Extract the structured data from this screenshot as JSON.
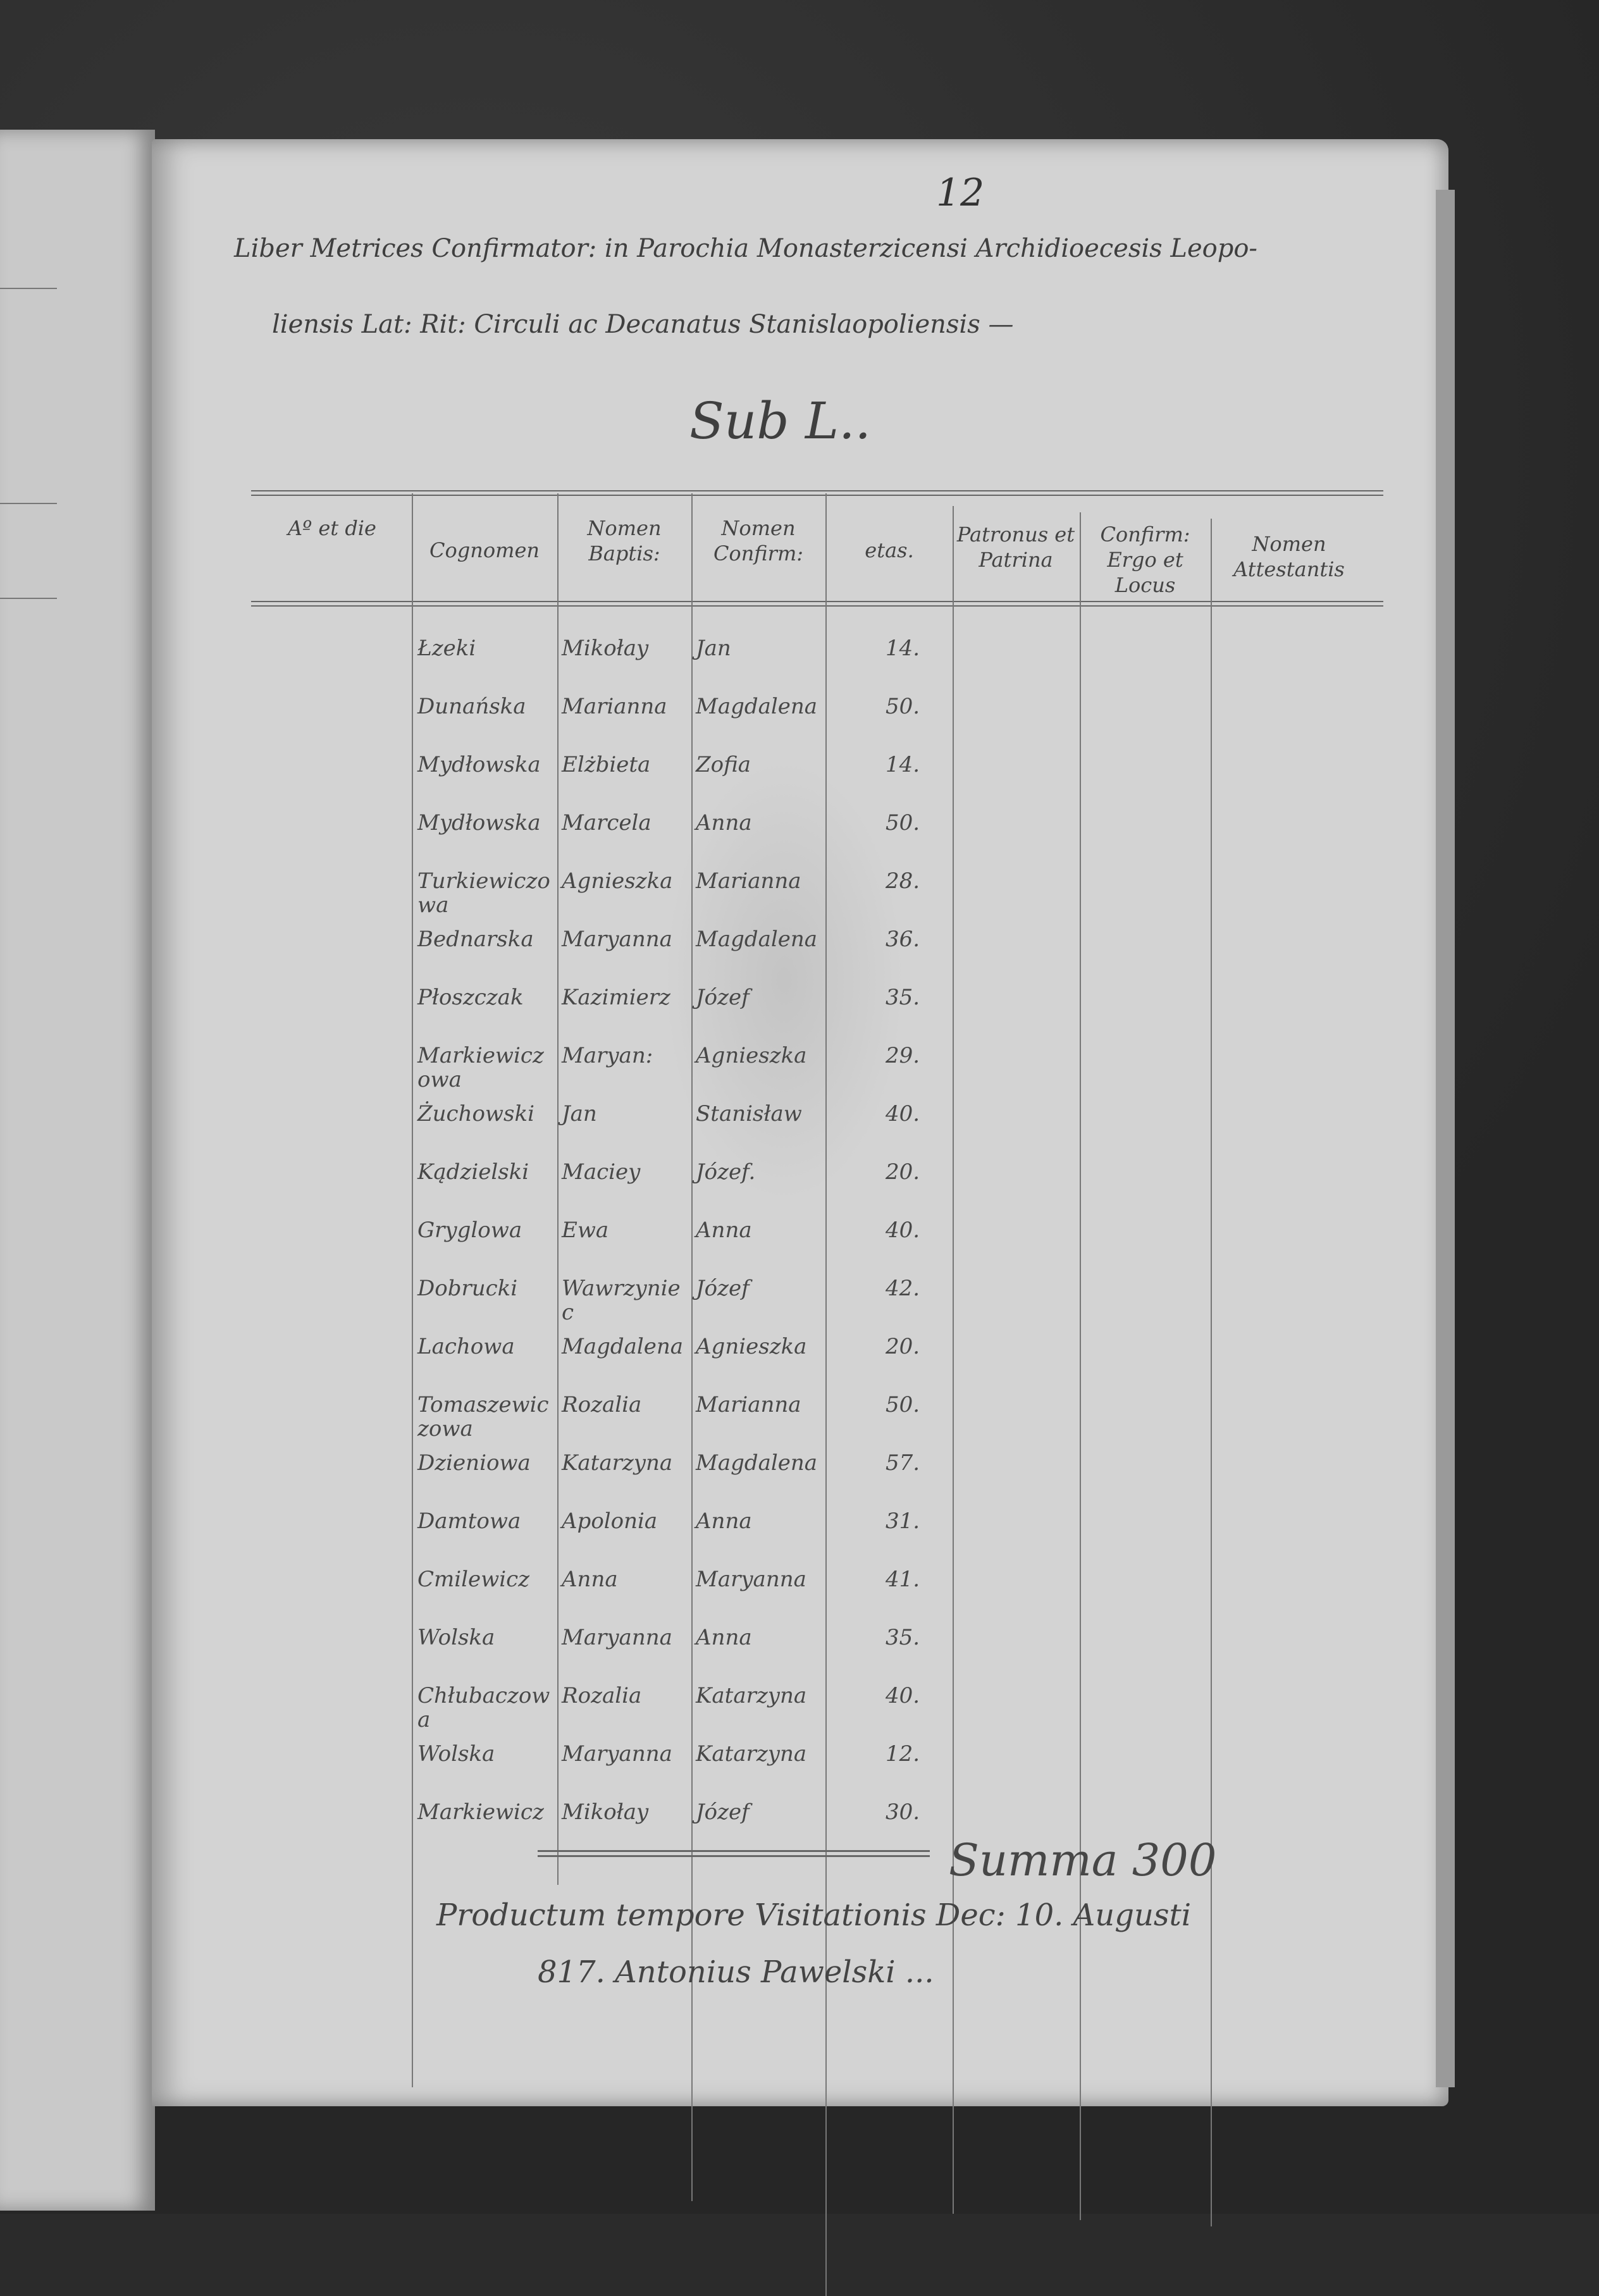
{
  "document": {
    "folio_number": "12",
    "title_line_1": "Liber Metrices Confirmator: in Parochia Monasterzicensi Archidioecesis Leopo-",
    "title_line_2": "liensis Lat: Rit: Circuli ac Decanatus Stanislaopoliensis —",
    "subtitle": "Sub L..",
    "columns": [
      {
        "label": "Aº et die"
      },
      {
        "label": "Cognomen"
      },
      {
        "label": "Nomen Baptis:"
      },
      {
        "label": "Nomen Confirm:"
      },
      {
        "label": "etas."
      },
      {
        "label": "Patronus et Patrina"
      },
      {
        "label": "Confirm: Ergo et Locus"
      },
      {
        "label": "Nomen Attestantis"
      }
    ],
    "rows": [
      {
        "surname": "Łzeki",
        "baptismal": "Mikołay",
        "confirmation": "Jan",
        "age": "14."
      },
      {
        "surname": "Dunańska",
        "baptismal": "Marianna",
        "confirmation": "Magdalena",
        "age": "50."
      },
      {
        "surname": "Mydłowska",
        "baptismal": "Elżbieta",
        "confirmation": "Zofia",
        "age": "14."
      },
      {
        "surname": "Mydłowska",
        "baptismal": "Marcela",
        "confirmation": "Anna",
        "age": "50."
      },
      {
        "surname": "Turkiewiczowa",
        "baptismal": "Agnieszka",
        "confirmation": "Marianna",
        "age": "28."
      },
      {
        "surname": "Bednarska",
        "baptismal": "Maryanna",
        "confirmation": "Magdalena",
        "age": "36."
      },
      {
        "surname": "Płoszczak",
        "baptismal": "Kazimierz",
        "confirmation": "Józef",
        "age": "35."
      },
      {
        "surname": "Markiewiczowa",
        "baptismal": "Maryan:",
        "confirmation": "Agnieszka",
        "age": "29."
      },
      {
        "surname": "Żuchowski",
        "baptismal": "Jan",
        "confirmation": "Stanisław",
        "age": "40."
      },
      {
        "surname": "Kądzielski",
        "baptismal": "Maciey",
        "confirmation": "Józef.",
        "age": "20."
      },
      {
        "surname": "Gryglowa",
        "baptismal": "Ewa",
        "confirmation": "Anna",
        "age": "40."
      },
      {
        "surname": "Dobrucki",
        "baptismal": "Wawrzyniec",
        "confirmation": "Józef",
        "age": "42."
      },
      {
        "surname": "Lachowa",
        "baptismal": "Magdalena",
        "confirmation": "Agnieszka",
        "age": "20."
      },
      {
        "surname": "Tomaszewiczowa",
        "baptismal": "Rozalia",
        "confirmation": "Marianna",
        "age": "50."
      },
      {
        "surname": "Dzieniowa",
        "baptismal": "Katarzyna",
        "confirmation": "Magdalena",
        "age": "57."
      },
      {
        "surname": "Damtowa",
        "baptismal": "Apolonia",
        "confirmation": "Anna",
        "age": "31."
      },
      {
        "surname": "Cmilewicz",
        "baptismal": "Anna",
        "confirmation": "Maryanna",
        "age": "41."
      },
      {
        "surname": "Wolska",
        "baptismal": "Maryanna",
        "confirmation": "Anna",
        "age": "35."
      },
      {
        "surname": "Chłubaczowa",
        "baptismal": "Rozalia",
        "confirmation": "Katarzyna",
        "age": "40."
      },
      {
        "surname": "Wolska",
        "baptismal": "Maryanna",
        "confirmation": "Katarzyna",
        "age": "12."
      },
      {
        "surname": "Markiewicz",
        "baptismal": "Mikołay",
        "confirmation": "Józef",
        "age": "30."
      }
    ],
    "summa": "Summa 300",
    "closing_line_1": "Productum tempore Visitationis Dec: 10. Augusti",
    "closing_line_2": "817.  Antonius Pawelski ...",
    "paper_color": "#d3d3d3",
    "ink_color": "#444444"
  }
}
